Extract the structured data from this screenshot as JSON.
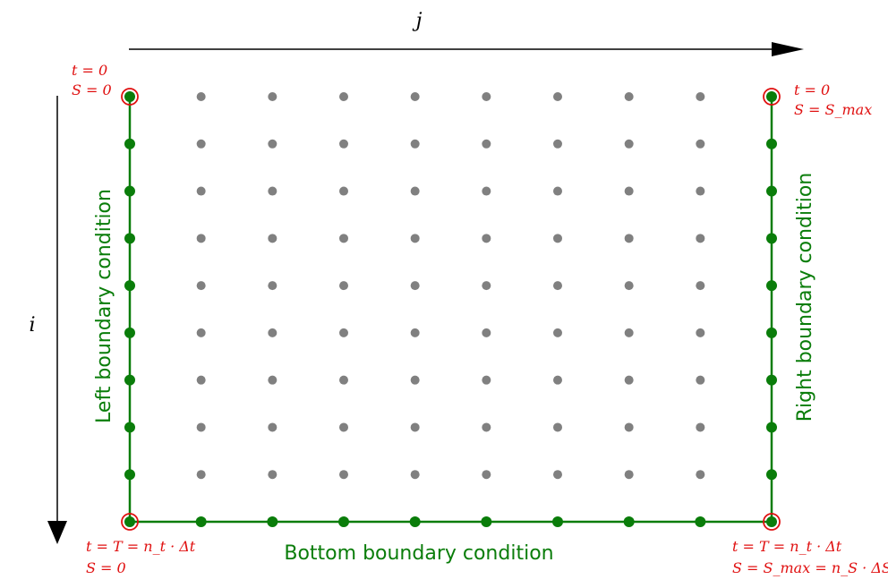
{
  "axes": {
    "horizontal_label": "j",
    "vertical_label": "i"
  },
  "grid": {
    "columns": 10,
    "rows": 10,
    "interior_color": "#808080",
    "boundary_color": "#0a7d0a",
    "corner_marker_color": "#e01010"
  },
  "labels": {
    "left": "Left boundary condition",
    "right": "Right boundary condition",
    "bottom": "Bottom boundary condition"
  },
  "corners": {
    "top_left": {
      "line1": "t = 0",
      "line2": "S = 0"
    },
    "top_right": {
      "line1": "t = 0",
      "line2": "S = S_max"
    },
    "bottom_left": {
      "line1": "t = T = n_t · Δt",
      "line2": "S = 0"
    },
    "bottom_right": {
      "line1": "t = T = n_t · Δt",
      "line2": "S = S_max = n_S · ΔS"
    }
  }
}
